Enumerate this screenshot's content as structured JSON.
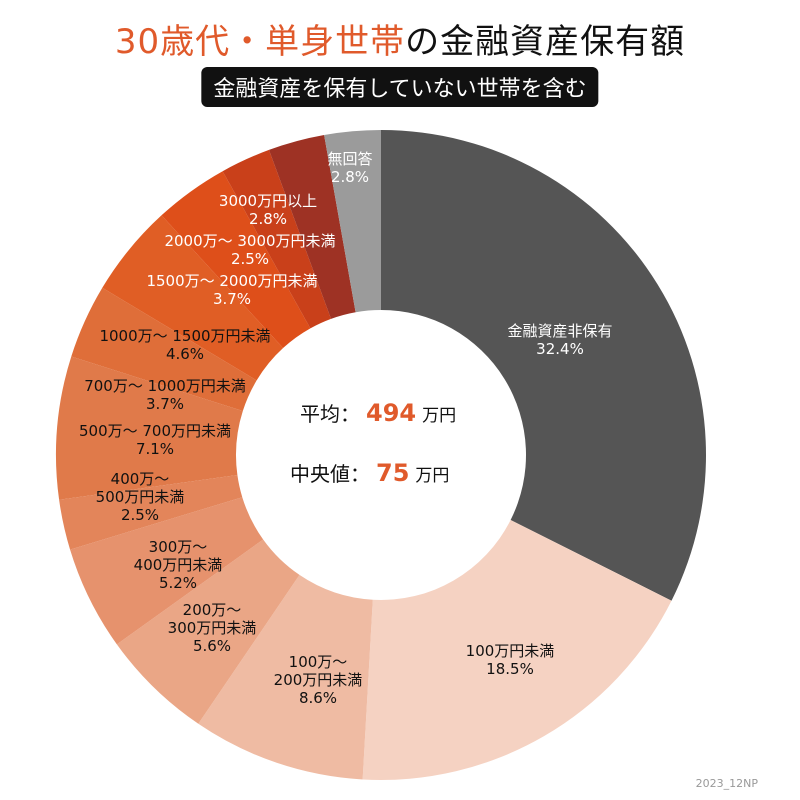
{
  "title": {
    "highlight": "30歳代・単身世帯",
    "rest": "の金融資産保有額"
  },
  "subtitle": "金融資産を保有していない世帯を含む",
  "center": {
    "mean_label": "平均：",
    "mean_value": "494",
    "mean_unit": "万円",
    "median_label": "中央値：",
    "median_value": "75",
    "median_unit": "万円"
  },
  "credit": "2023_12NP",
  "chart_data": {
    "type": "pie",
    "donut": true,
    "start": "top",
    "direction": "clockwise",
    "categories": [
      "金融資産非保有",
      "100万円未満",
      "100万～\n200万円未満",
      "200万～\n300万円未満",
      "300万～\n400万円未満",
      "400万～\n500万円未満",
      "500万～ 700万円未満",
      "700万～ 1000万円未満",
      "1000万～ 1500万円未満",
      "1500万～ 2000万円未満",
      "2000万～ 3000万円未満",
      "3000万円以上",
      "無回答"
    ],
    "values": [
      32.4,
      18.5,
      8.6,
      5.6,
      5.2,
      2.5,
      7.1,
      3.7,
      4.6,
      3.7,
      2.5,
      2.8,
      2.8
    ],
    "value_labels": [
      "32.4%",
      "18.5%",
      "8.6%",
      "5.6%",
      "5.2%",
      "2.5%",
      "7.1%",
      "3.7%",
      "4.6%",
      "3.7%",
      "2.5%",
      "2.8%",
      "2.8%"
    ],
    "colors": [
      "#555555",
      "#f5d2c2",
      "#efbba3",
      "#eaa686",
      "#e6926d",
      "#e3855a",
      "#e07a4a",
      "#df6e39",
      "#e05e25",
      "#de4f1a",
      "#c9401a",
      "#9e3224",
      "#9b9b9b"
    ],
    "label_colors": [
      "#ffffff",
      "#111111",
      "#111111",
      "#111111",
      "#111111",
      "#111111",
      "#111111",
      "#111111",
      "#111111",
      "#ffffff",
      "#ffffff",
      "#ffffff",
      "#ffffff"
    ]
  }
}
